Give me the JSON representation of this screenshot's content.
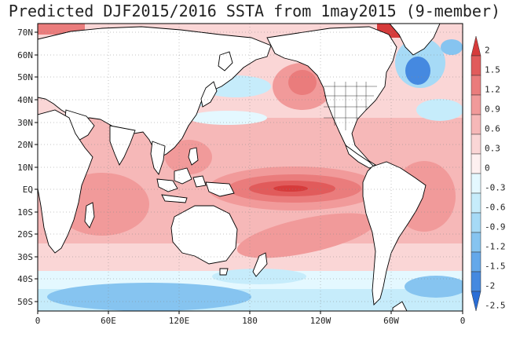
{
  "title": "Predicted DJF2015/2016 SSTA from 1may2015 (9-member)",
  "map": {
    "lat_labels": [
      "70N",
      "60N",
      "50N",
      "40N",
      "30N",
      "20N",
      "10N",
      "EQ",
      "10S",
      "20S",
      "30S",
      "40S",
      "50S"
    ],
    "lon_labels": [
      "0",
      "60E",
      "120E",
      "180",
      "120W",
      "60W",
      "0"
    ]
  },
  "colorbar": {
    "labels": [
      "2",
      "1.5",
      "1.2",
      "0.9",
      "0.6",
      "0.3",
      "0",
      "-0.3",
      "-0.6",
      "-0.9",
      "-1.2",
      "-1.5",
      "-2",
      "-2.5"
    ],
    "colors": [
      "#d63b3b",
      "#e15b5b",
      "#ea7c7c",
      "#f19a9a",
      "#f6b8b8",
      "#fad6d6",
      "#fdf0f0",
      "#e4f8ff",
      "#c6ecfb",
      "#a6daf6",
      "#86c4f0",
      "#64a8ea",
      "#4589e0",
      "#2a6ed6"
    ]
  }
}
